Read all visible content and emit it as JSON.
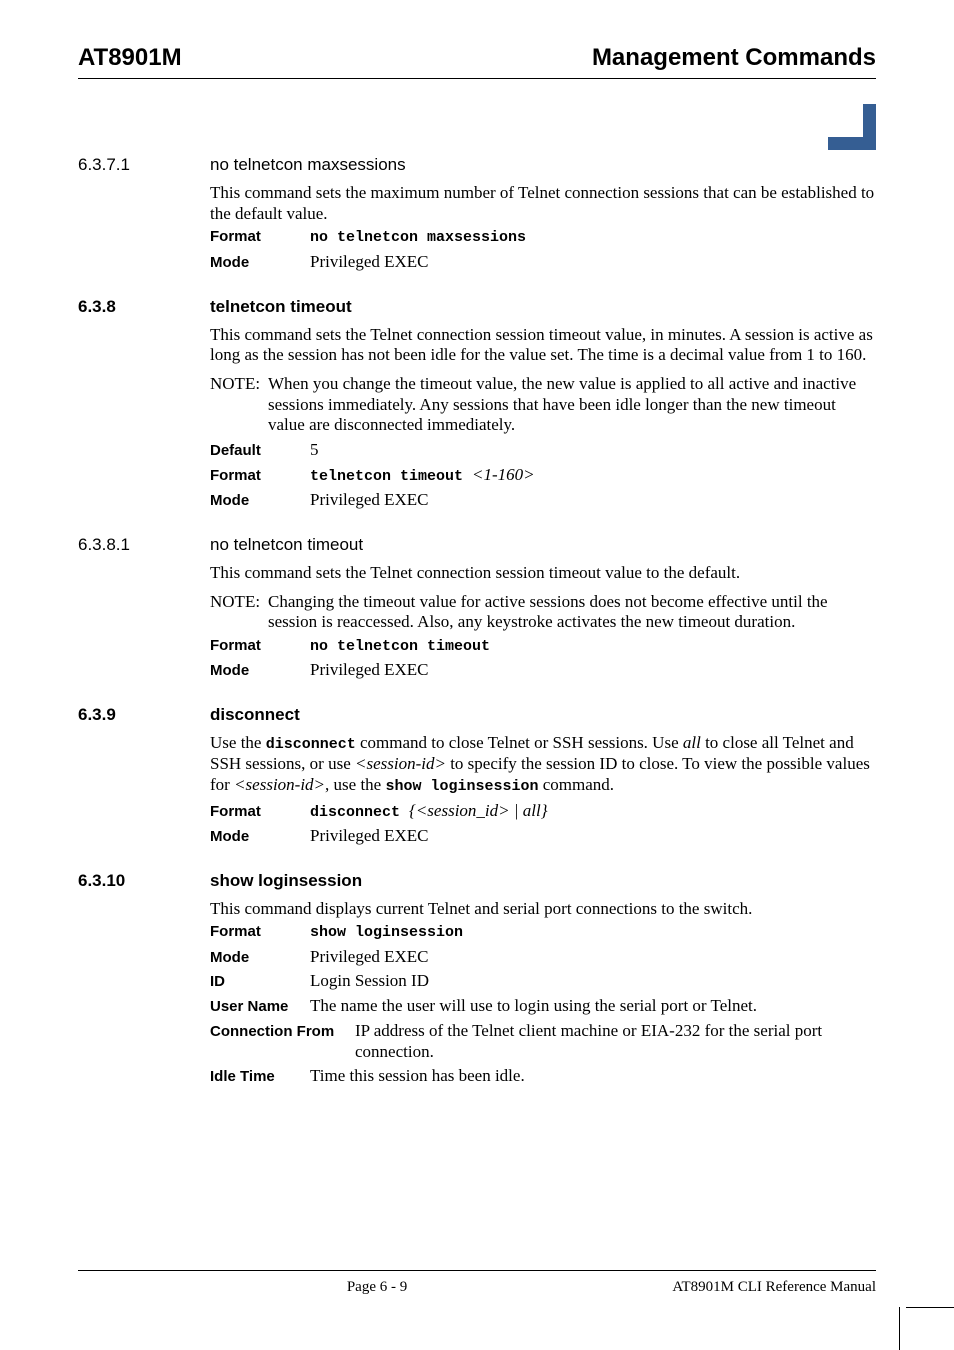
{
  "colors": {
    "accent": "#355e93",
    "text": "#000000",
    "background": "#ffffff"
  },
  "typography": {
    "body_font": "Times New Roman",
    "heading_font": "Arial",
    "mono_font": "Courier New",
    "body_size_pt": 12,
    "heading_size_pt": 12,
    "header_size_pt": 18
  },
  "header": {
    "left": "AT8901M",
    "right": "Management Commands"
  },
  "sections": [
    {
      "num": "6.3.7.1",
      "num_bold": false,
      "title": "no telnetcon maxsessions",
      "title_bold": false,
      "paras": [
        "This command sets the maximum number of Telnet connection sessions that can be established to the default value."
      ],
      "kv": [
        {
          "label": "Format",
          "mono": "no telnetcon maxsessions"
        },
        {
          "label": "Mode",
          "text": "Privileged EXEC"
        }
      ]
    },
    {
      "num": "6.3.8",
      "num_bold": true,
      "title": "telnetcon timeout",
      "title_bold": true,
      "paras": [
        "This command sets the Telnet connection session timeout value, in minutes. A session is active as long as the session has not been idle for the value set. The time is a decimal value from 1 to 160."
      ],
      "note": {
        "label": "NOTE:",
        "text": "When you change the timeout value, the new value is applied to all active and inactive sessions immediately. Any sessions that have been idle longer than the new timeout value are disconnected immediately."
      },
      "kv": [
        {
          "label": "Default",
          "text": "5"
        },
        {
          "label": "Format",
          "mono": "telnetcon timeout ",
          "ital_suffix": "<1-160>"
        },
        {
          "label": "Mode",
          "text": "Privileged EXEC"
        }
      ]
    },
    {
      "num": "6.3.8.1",
      "num_bold": false,
      "title": "no telnetcon timeout",
      "title_bold": false,
      "paras": [
        "This command sets the Telnet connection session timeout value to the default."
      ],
      "note": {
        "label": "NOTE:",
        "text": "Changing the timeout value for active sessions does not become effective until the session is reaccessed. Also, any keystroke activates the new timeout duration."
      },
      "kv": [
        {
          "label": "Format",
          "mono": "no telnetcon timeout"
        },
        {
          "label": "Mode",
          "text": "Privileged EXEC"
        }
      ]
    },
    {
      "num": "6.3.9",
      "num_bold": true,
      "title": "disconnect",
      "title_bold": true,
      "rich_para": {
        "p1": "Use the ",
        "m1": "disconnect",
        "p2": " command to close Telnet or SSH sessions. Use ",
        "i1": "all",
        "p3": " to close all Telnet and SSH sessions, or use ",
        "i2": "<session-id>",
        "p4": " to specify the session ID to close. To view the possible values for ",
        "i3": "<session-id>",
        "p5": ", use the ",
        "m2": "show loginsession",
        "p6": " command."
      },
      "kv": [
        {
          "label": "Format",
          "mono": "disconnect ",
          "ital_suffix": "{<session_id> | all}"
        },
        {
          "label": "Mode",
          "text": "Privileged EXEC"
        }
      ]
    },
    {
      "num": "6.3.10",
      "num_bold": true,
      "title": "show loginsession",
      "title_bold": true,
      "paras": [
        "This command displays current Telnet and serial port connections to the switch."
      ],
      "kv_wide": [
        {
          "label": "Format",
          "mono": "show loginsession"
        },
        {
          "label": "Mode",
          "text": "Privileged EXEC"
        },
        {
          "label": "ID",
          "text": "Login Session ID"
        },
        {
          "label": "User Name",
          "text": "The name the user will use to login using the serial port or Telnet."
        },
        {
          "label": "Connection From",
          "text": "IP address of the Telnet client machine or EIA-232 for the serial port connection."
        },
        {
          "label": "Idle Time",
          "text": "Time this session has been idle."
        }
      ]
    }
  ],
  "footer": {
    "center": "Page 6 - 9",
    "right": "AT8901M CLI Reference Manual"
  }
}
